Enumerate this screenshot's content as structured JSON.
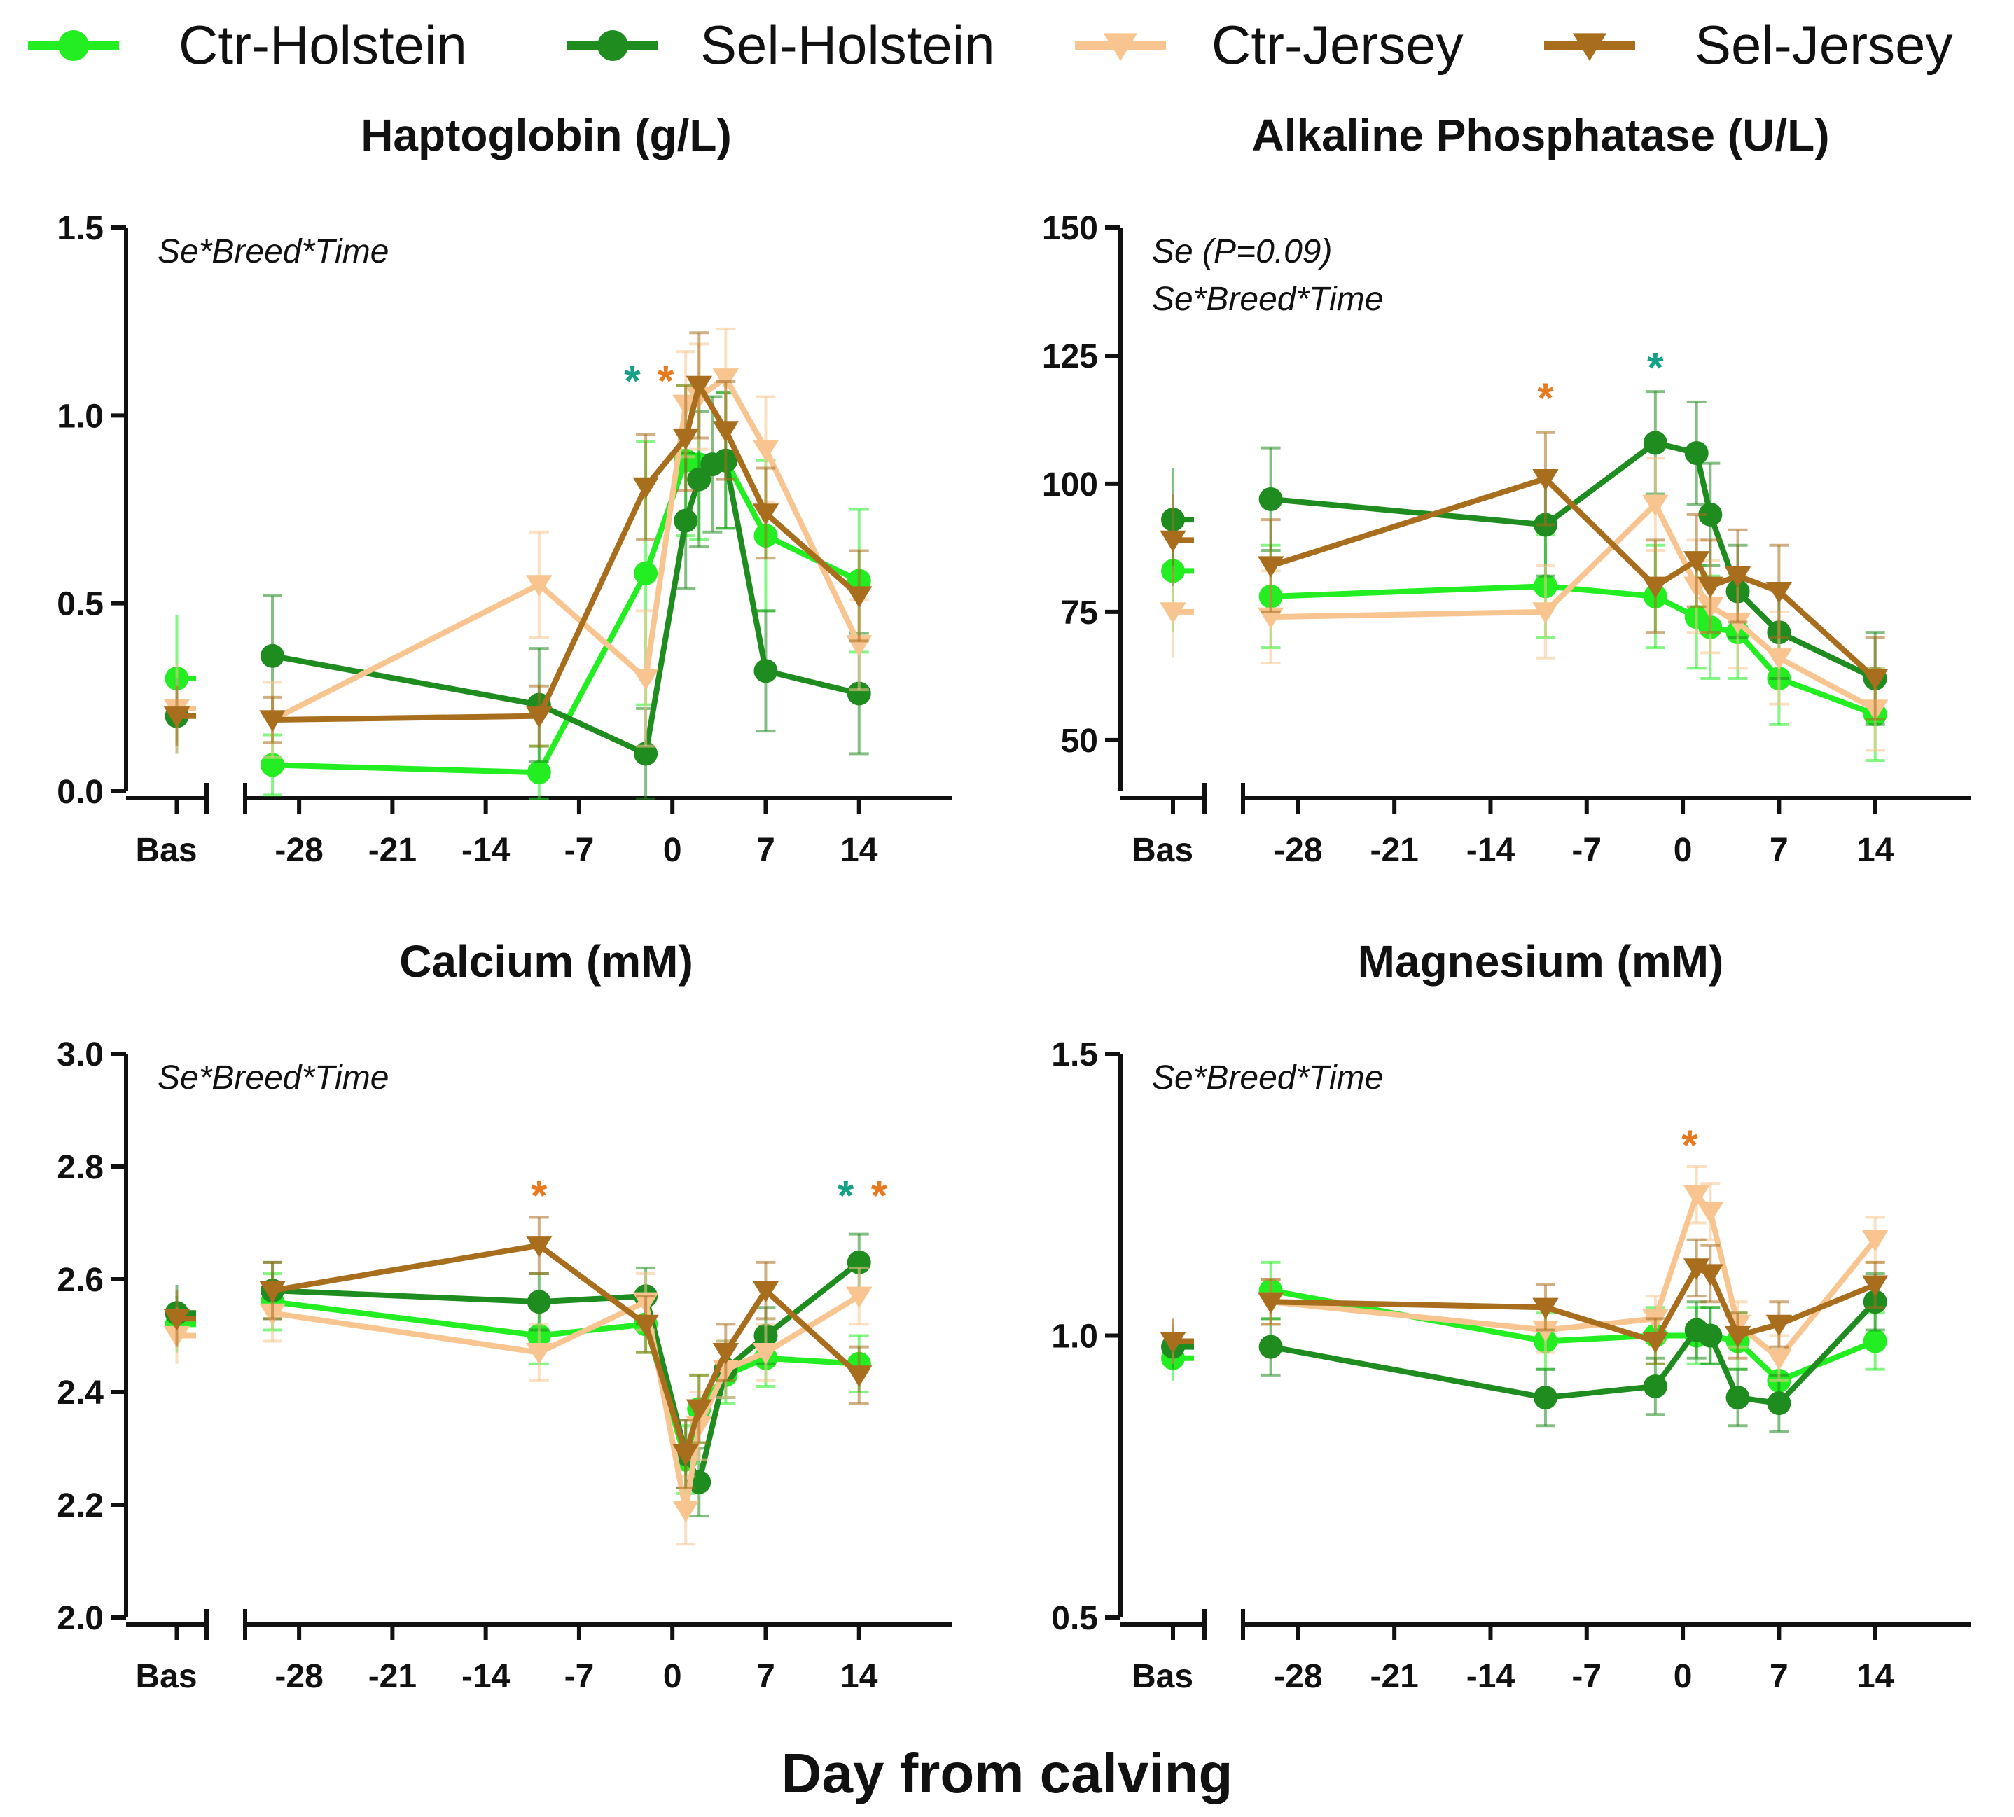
{
  "legend": [
    {
      "name": "Ctr-Holstein",
      "color": "#22ee22",
      "marker": "circle"
    },
    {
      "name": "Sel-Holstein",
      "color": "#1e8c1e",
      "marker": "circle"
    },
    {
      "name": "Ctr-Jersey",
      "color": "#f8c590",
      "marker": "triangle-down"
    },
    {
      "name": "Sel-Jersey",
      "color": "#a86e1e",
      "marker": "triangle-down"
    }
  ],
  "x_title": "Day from calving",
  "star_colors": {
    "holstein": "#16a085",
    "jersey": "#e8791e"
  },
  "chart_data": [
    {
      "type": "line",
      "title": "Haptoglobin (g/L)",
      "xlabel": "Day from calving",
      "ylabel": "",
      "ylim": [
        0,
        1.5
      ],
      "y_ticks": [
        "0.0",
        "0.5",
        "1.0",
        "1.5"
      ],
      "y_tick_values": [
        0,
        0.5,
        1.0,
        1.5
      ],
      "baseline_label": "Bas",
      "x_ticks": [
        "-28",
        "-21",
        "-14",
        "-7",
        "0",
        "7",
        "14"
      ],
      "x_tick_values": [
        -28,
        -21,
        -14,
        -7,
        0,
        7,
        14
      ],
      "xlim": [
        -31,
        21
      ],
      "notes": [
        "Se*Breed*Time"
      ],
      "stars": [
        {
          "x": -3,
          "y": 1.11,
          "group": "holstein"
        },
        {
          "x": -0.5,
          "y": 1.11,
          "group": "jersey"
        }
      ],
      "series": [
        {
          "name": "Ctr-Holstein",
          "baseline": 0.3,
          "baseline_err": 0.17,
          "x": [
            -30,
            -10,
            -2,
            1,
            2,
            4,
            7,
            14
          ],
          "values": [
            0.07,
            0.05,
            0.58,
            0.88,
            0.87,
            0.88,
            0.68,
            0.56
          ],
          "errors": [
            0.08,
            0.07,
            0.35,
            0.2,
            0.2,
            0.18,
            0.2,
            0.19
          ]
        },
        {
          "name": "Sel-Holstein",
          "baseline": 0.2,
          "baseline_err": 0.1,
          "x": [
            -30,
            -10,
            -2,
            1,
            2,
            3,
            4,
            7,
            14
          ],
          "values": [
            0.36,
            0.23,
            0.1,
            0.72,
            0.83,
            0.87,
            0.88,
            0.32,
            0.26
          ],
          "errors": [
            0.16,
            0.15,
            0.12,
            0.18,
            0.18,
            0.18,
            0.18,
            0.16,
            0.16
          ]
        },
        {
          "name": "Ctr-Jersey",
          "baseline": 0.22,
          "baseline_err": 0.12,
          "x": [
            -30,
            -10,
            -2,
            1,
            2,
            4,
            7,
            14
          ],
          "values": [
            0.19,
            0.55,
            0.3,
            1.03,
            1.05,
            1.1,
            0.91,
            0.39
          ],
          "errors": [
            0.1,
            0.14,
            0.18,
            0.14,
            0.14,
            0.13,
            0.14,
            0.12
          ]
        },
        {
          "name": "Sel-Jersey",
          "baseline": 0.2,
          "baseline_err": 0.08,
          "x": [
            -30,
            -10,
            -2,
            1,
            2,
            4,
            7,
            14
          ],
          "values": [
            0.19,
            0.2,
            0.81,
            0.94,
            1.08,
            0.96,
            0.74,
            0.52
          ],
          "errors": [
            0.06,
            0.08,
            0.14,
            0.14,
            0.14,
            0.13,
            0.12,
            0.12
          ]
        }
      ]
    },
    {
      "type": "line",
      "title": "Alkaline Phosphatase (U/L)",
      "xlabel": "Day from calving",
      "ylabel": "",
      "ylim": [
        40,
        150
      ],
      "y_ticks": [
        "50",
        "75",
        "100",
        "125",
        "150"
      ],
      "y_tick_values": [
        50,
        75,
        100,
        125,
        150
      ],
      "baseline_label": "Bas",
      "x_ticks": [
        "-28",
        "-21",
        "-14",
        "-7",
        "0",
        "7",
        "14"
      ],
      "x_tick_values": [
        -28,
        -21,
        -14,
        -7,
        0,
        7,
        14
      ],
      "xlim": [
        -31,
        21
      ],
      "notes": [
        "Se (P=0.09)",
        "Se*Breed*Time"
      ],
      "stars": [
        {
          "x": -10,
          "y": 118,
          "group": "jersey"
        },
        {
          "x": -2,
          "y": 124,
          "group": "holstein"
        }
      ],
      "series": [
        {
          "name": "Ctr-Holstein",
          "baseline": 83,
          "baseline_err": 12,
          "x": [
            -30,
            -10,
            -2,
            1,
            2,
            4,
            7,
            14
          ],
          "values": [
            78,
            80,
            78,
            74,
            72,
            71,
            62,
            55
          ],
          "errors": [
            10,
            10,
            10,
            10,
            10,
            9,
            9,
            9
          ]
        },
        {
          "name": "Sel-Holstein",
          "baseline": 93,
          "baseline_err": 10,
          "x": [
            -30,
            -10,
            -2,
            1,
            2,
            4,
            7,
            14
          ],
          "values": [
            97,
            92,
            108,
            106,
            94,
            79,
            71,
            62
          ],
          "errors": [
            10,
            10,
            10,
            10,
            10,
            9,
            9,
            9
          ]
        },
        {
          "name": "Ctr-Jersey",
          "baseline": 75,
          "baseline_err": 9,
          "x": [
            -30,
            -10,
            -2,
            1,
            2,
            4,
            7,
            14
          ],
          "values": [
            74,
            75,
            96,
            80,
            76,
            73,
            66,
            56
          ],
          "errors": [
            9,
            9,
            9,
            9,
            9,
            9,
            9,
            8
          ]
        },
        {
          "name": "Sel-Jersey",
          "baseline": 89,
          "baseline_err": 9,
          "x": [
            -30,
            -10,
            -2,
            1,
            2,
            4,
            7,
            14
          ],
          "values": [
            84,
            101,
            80,
            85,
            80,
            82,
            79,
            62
          ],
          "errors": [
            9,
            9,
            9,
            9,
            9,
            9,
            9,
            8
          ]
        }
      ]
    },
    {
      "type": "line",
      "title": "Calcium (mM)",
      "xlabel": "Day from calving",
      "ylabel": "",
      "ylim": [
        2.0,
        3.0
      ],
      "y_ticks": [
        "2.0",
        "2.2",
        "2.4",
        "2.6",
        "2.8",
        "3.0"
      ],
      "y_tick_values": [
        2.0,
        2.2,
        2.4,
        2.6,
        2.8,
        3.0
      ],
      "baseline_label": "Bas",
      "x_ticks": [
        "-28",
        "-21",
        "-14",
        "-7",
        "0",
        "7",
        "14"
      ],
      "x_tick_values": [
        -28,
        -21,
        -14,
        -7,
        0,
        7,
        14
      ],
      "xlim": [
        -31,
        21
      ],
      "notes": [
        "Se*Breed*Time"
      ],
      "stars": [
        {
          "x": -10,
          "y": 2.76,
          "group": "jersey"
        },
        {
          "x": 13,
          "y": 2.76,
          "group": "holstein"
        },
        {
          "x": 15.5,
          "y": 2.76,
          "group": "jersey"
        }
      ],
      "series": [
        {
          "name": "Ctr-Holstein",
          "baseline": 2.52,
          "baseline_err": 0.05,
          "x": [
            -30,
            -10,
            -2,
            1,
            2,
            4,
            7,
            14
          ],
          "values": [
            2.56,
            2.5,
            2.52,
            2.28,
            2.37,
            2.43,
            2.46,
            2.45
          ],
          "errors": [
            0.05,
            0.05,
            0.05,
            0.06,
            0.06,
            0.05,
            0.05,
            0.05
          ]
        },
        {
          "name": "Sel-Holstein",
          "baseline": 2.54,
          "baseline_err": 0.05,
          "x": [
            -30,
            -10,
            -2,
            1,
            2,
            4,
            7,
            14
          ],
          "values": [
            2.58,
            2.56,
            2.57,
            2.29,
            2.24,
            2.44,
            2.5,
            2.63
          ],
          "errors": [
            0.05,
            0.05,
            0.05,
            0.06,
            0.06,
            0.05,
            0.05,
            0.05
          ]
        },
        {
          "name": "Ctr-Jersey",
          "baseline": 2.5,
          "baseline_err": 0.05,
          "x": [
            -30,
            -10,
            -2,
            1,
            2,
            4,
            7,
            14
          ],
          "values": [
            2.54,
            2.47,
            2.56,
            2.19,
            2.34,
            2.44,
            2.47,
            2.57
          ],
          "errors": [
            0.05,
            0.05,
            0.05,
            0.06,
            0.06,
            0.05,
            0.05,
            0.05
          ]
        },
        {
          "name": "Sel-Jersey",
          "baseline": 2.53,
          "baseline_err": 0.05,
          "x": [
            -30,
            -10,
            -2,
            1,
            2,
            4,
            7,
            14
          ],
          "values": [
            2.58,
            2.66,
            2.52,
            2.29,
            2.37,
            2.47,
            2.58,
            2.43
          ],
          "errors": [
            0.05,
            0.05,
            0.05,
            0.06,
            0.06,
            0.05,
            0.05,
            0.05
          ]
        }
      ]
    },
    {
      "type": "line",
      "title": "Magnesium (mM)",
      "xlabel": "Day from calving",
      "ylabel": "",
      "ylim": [
        0.5,
        1.5
      ],
      "y_ticks": [
        "0.5",
        "1.0",
        "1.5"
      ],
      "y_tick_values": [
        0.5,
        1.0,
        1.5
      ],
      "baseline_label": "Bas",
      "x_ticks": [
        "-28",
        "-21",
        "-14",
        "-7",
        "0",
        "7",
        "14"
      ],
      "x_tick_values": [
        -28,
        -21,
        -14,
        -7,
        0,
        7,
        14
      ],
      "xlim": [
        -31,
        21
      ],
      "notes": [
        "Se*Breed*Time"
      ],
      "stars": [
        {
          "x": 0.5,
          "y": 1.35,
          "group": "jersey"
        }
      ],
      "series": [
        {
          "name": "Ctr-Holstein",
          "baseline": 0.96,
          "baseline_err": 0.04,
          "x": [
            -30,
            -10,
            -2,
            1,
            2,
            4,
            7,
            14
          ],
          "values": [
            1.08,
            0.99,
            1.0,
            1.0,
            1.0,
            0.99,
            0.92,
            0.99
          ],
          "errors": [
            0.05,
            0.05,
            0.05,
            0.05,
            0.05,
            0.05,
            0.05,
            0.05
          ]
        },
        {
          "name": "Sel-Holstein",
          "baseline": 0.98,
          "baseline_err": 0.04,
          "x": [
            -30,
            -10,
            -2,
            1,
            2,
            4,
            7,
            14
          ],
          "values": [
            0.98,
            0.89,
            0.91,
            1.01,
            1.0,
            0.89,
            0.88,
            1.06
          ],
          "errors": [
            0.05,
            0.05,
            0.05,
            0.05,
            0.05,
            0.05,
            0.05,
            0.05
          ]
        },
        {
          "name": "Ctr-Jersey",
          "baseline": 0.99,
          "baseline_err": 0.04,
          "x": [
            -30,
            -10,
            -2,
            1,
            2,
            4,
            7,
            14
          ],
          "values": [
            1.06,
            1.01,
            1.03,
            1.25,
            1.22,
            1.02,
            0.96,
            1.17
          ],
          "errors": [
            0.04,
            0.04,
            0.04,
            0.05,
            0.05,
            0.04,
            0.04,
            0.04
          ]
        },
        {
          "name": "Sel-Jersey",
          "baseline": 0.99,
          "baseline_err": 0.04,
          "x": [
            -30,
            -10,
            -2,
            1,
            2,
            4,
            7,
            14
          ],
          "values": [
            1.06,
            1.05,
            0.99,
            1.12,
            1.11,
            1.0,
            1.02,
            1.09
          ],
          "errors": [
            0.04,
            0.04,
            0.04,
            0.05,
            0.05,
            0.04,
            0.04,
            0.04
          ]
        }
      ]
    }
  ]
}
